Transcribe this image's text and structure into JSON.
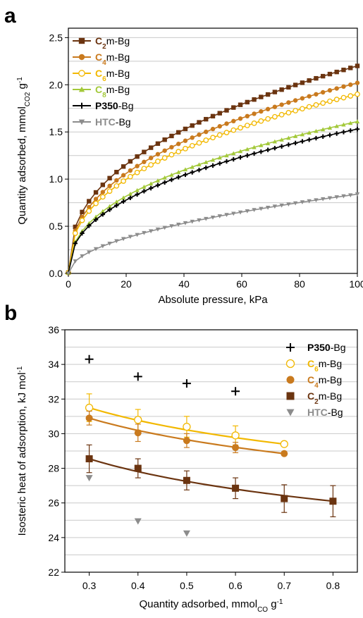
{
  "chart_data": [
    {
      "panel": "a",
      "type": "line",
      "xlabel": "Absolute pressure, kPa",
      "ylabel": "Quantity adsorbed, mmol",
      "ylabel_sub": "CO2",
      "ylabel_suffix": " g",
      "ylabel_sup": "-1",
      "xlim": [
        0,
        100
      ],
      "ylim": [
        0,
        2.6
      ],
      "xticks": [
        "0",
        "20",
        "40",
        "60",
        "80",
        "100"
      ],
      "yticks": [
        "0.0",
        "0.5",
        "1.0",
        "1.5",
        "2.0",
        "2.5"
      ],
      "grid": "horizontal",
      "legend_position": "top-left",
      "series": [
        {
          "name_prefix": "C",
          "name_sub": "2",
          "name_suffix": "m-Bg",
          "color": "#6b3410",
          "marker": "square",
          "xmax": 100,
          "ymax": 2.2,
          "k": 0.4
        },
        {
          "name_prefix": "C",
          "name_sub": "4",
          "name_suffix": "m-Bg",
          "color": "#c97a1e",
          "marker": "circle",
          "xmax": 100,
          "ymax": 2.02,
          "k": 0.4
        },
        {
          "name_prefix": "C",
          "name_sub": "6",
          "name_suffix": "m-Bg",
          "color": "#f2b800",
          "marker": "circle-open",
          "xmax": 100,
          "ymax": 1.9,
          "k": 0.4
        },
        {
          "name_prefix": "C",
          "name_sub": "8",
          "name_suffix": "m-Bg",
          "color": "#a3c93a",
          "marker": "triangle",
          "xmax": 100,
          "ymax": 1.61,
          "k": 0.42
        },
        {
          "name_prefix": "P350",
          "name_sub": "",
          "name_suffix": "-Bg",
          "color": "#000000",
          "marker": "plus",
          "xmax": 100,
          "ymax": 1.53,
          "k": 0.42
        },
        {
          "name_prefix": "HTC",
          "name_sub": "",
          "name_suffix": "-Bg",
          "color": "#8c8c8c",
          "marker": "triangle-down",
          "xmax": 100,
          "ymax": 0.84,
          "k": 0.5
        }
      ]
    },
    {
      "panel": "b",
      "type": "scatter",
      "xlabel": "Quantity adsorbed, mmol",
      "xlabel_sub": "CO",
      "xlabel_suffix": " g",
      "xlabel_sup": "-1",
      "ylabel": "Isosteric heat of adsorption, kJ mol",
      "ylabel_sup": "-1",
      "xlim": [
        0.25,
        0.85
      ],
      "ylim": [
        22,
        36
      ],
      "xticks": [
        "0.3",
        "0.4",
        "0.5",
        "0.6",
        "0.7",
        "0.8"
      ],
      "yticks": [
        "22",
        "24",
        "26",
        "28",
        "30",
        "32",
        "34",
        "36"
      ],
      "grid": "horizontal",
      "legend_position": "top-right",
      "series": [
        {
          "name_prefix": "P350",
          "name_sub": "",
          "name_suffix": "-Bg",
          "color": "#000000",
          "marker": "plus",
          "x": [
            0.3,
            0.4,
            0.5,
            0.6
          ],
          "y": [
            34.3,
            33.3,
            32.9,
            32.45
          ],
          "err": [],
          "fit": false
        },
        {
          "name_prefix": "C",
          "name_sub": "6",
          "name_suffix": "m-Bg",
          "color": "#f2b800",
          "marker": "circle-open",
          "x": [
            0.3,
            0.4,
            0.5,
            0.6,
            0.7
          ],
          "y": [
            31.5,
            30.8,
            30.4,
            29.9,
            29.4
          ],
          "err": [
            0.8,
            0.6,
            0.6,
            0.55,
            0.1
          ],
          "fit": true
        },
        {
          "name_prefix": "C",
          "name_sub": "4",
          "name_suffix": "m-Bg",
          "color": "#c97a1e",
          "marker": "circle",
          "x": [
            0.3,
            0.4,
            0.5,
            0.6,
            0.7
          ],
          "y": [
            30.9,
            30.05,
            29.6,
            29.2,
            28.85
          ],
          "err": [
            0.4,
            0.5,
            0.4,
            0.3,
            0.1
          ],
          "fit": true
        },
        {
          "name_prefix": "C",
          "name_sub": "2",
          "name_suffix": "m-Bg",
          "color": "#6b3410",
          "marker": "square",
          "x": [
            0.3,
            0.4,
            0.5,
            0.6,
            0.7,
            0.8
          ],
          "y": [
            28.55,
            28.0,
            27.3,
            26.85,
            26.25,
            26.1
          ],
          "err": [
            0.8,
            0.55,
            0.55,
            0.6,
            0.8,
            0.9
          ],
          "fit": true
        },
        {
          "name_prefix": "HTC",
          "name_sub": "",
          "name_suffix": "-Bg",
          "color": "#8c8c8c",
          "marker": "triangle-down",
          "x": [
            0.3,
            0.4,
            0.5
          ],
          "y": [
            27.45,
            24.95,
            24.25
          ],
          "err": [],
          "fit": false
        }
      ]
    }
  ],
  "panel_labels": {
    "a": "a",
    "b": "b"
  }
}
